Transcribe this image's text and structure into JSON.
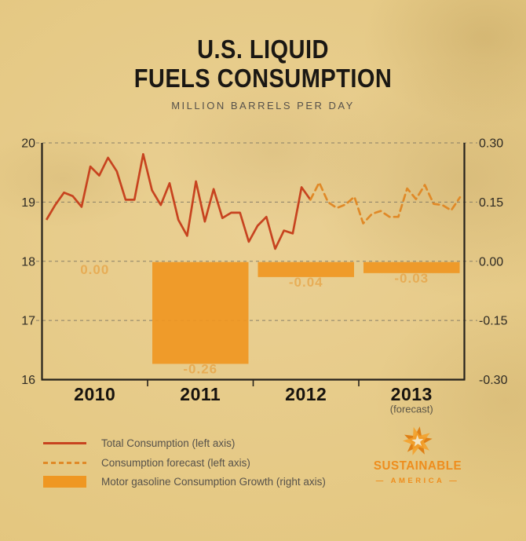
{
  "header": {
    "title_line1": "U.S. LIQUID",
    "title_line2": "FUELS CONSUMPTION",
    "subtitle": "MILLION BARRELS PER DAY"
  },
  "chart_data": {
    "type": "combo-line-bar",
    "title": "U.S. Liquid Fuels Consumption",
    "units": "million barrels per day",
    "x_categories": [
      "2010",
      "2011",
      "2012",
      "2013"
    ],
    "forecast_note": "(forecast)",
    "left_axis": {
      "side": "left",
      "ticks": [
        "20",
        "19",
        "18",
        "17",
        "16"
      ],
      "min": 16,
      "max": 20
    },
    "right_axis": {
      "side": "right",
      "ticks": [
        "0.30",
        "0.15",
        "0.00",
        "-0.15",
        "-0.30"
      ],
      "min": -0.3,
      "max": 0.3
    },
    "grid": "horizontal-dashed",
    "line_series": {
      "name": "Total Consumption",
      "axis": "left",
      "points_per_year": 12,
      "forecast_start_index": 30,
      "values": [
        18.7,
        18.95,
        19.16,
        19.1,
        18.92,
        19.6,
        19.45,
        19.75,
        19.52,
        19.04,
        19.04,
        19.81,
        19.2,
        18.95,
        19.32,
        18.7,
        18.43,
        19.35,
        18.67,
        19.22,
        18.73,
        18.82,
        18.82,
        18.33,
        18.6,
        18.75,
        18.21,
        18.52,
        18.47,
        19.25,
        19.04,
        19.33,
        19.0,
        18.9,
        18.96,
        19.09,
        18.64,
        18.8,
        18.85,
        18.75,
        18.75,
        19.23,
        19.05,
        19.29,
        18.97,
        18.95,
        18.86,
        19.08
      ]
    },
    "bar_series": {
      "name": "Motor gasoline Consumption Growth",
      "axis": "right",
      "categories": [
        "2010",
        "2011",
        "2012",
        "2013"
      ],
      "values": [
        0.0,
        -0.26,
        -0.04,
        -0.03
      ],
      "labels": [
        "0.00",
        "-0.26",
        "-0.04",
        "-0.03"
      ]
    }
  },
  "legend": {
    "items": [
      {
        "swatch": "solid-line",
        "label": "Total Consumption (left axis)"
      },
      {
        "swatch": "dashed-line",
        "label": "Consumption forecast (left axis)"
      },
      {
        "swatch": "bar",
        "label": "Motor gasoline Consumption Growth (right axis)"
      }
    ]
  },
  "logo": {
    "name_line1": "SUSTAINABLE",
    "name_line2": "— AMERICA —"
  },
  "colors": {
    "background": "#e3c67e",
    "title_text": "#1a1713",
    "muted_text": "#56514a",
    "axis_text": "#2e2a23",
    "axis_line": "#25211b",
    "gridline": "#6f6a5e",
    "line_solid": "#c7431f",
    "line_forecast": "#e08927",
    "bar_fill": "#ef9722",
    "bar_label": "#e79a35",
    "logo_orange": "#ee8d1d"
  }
}
